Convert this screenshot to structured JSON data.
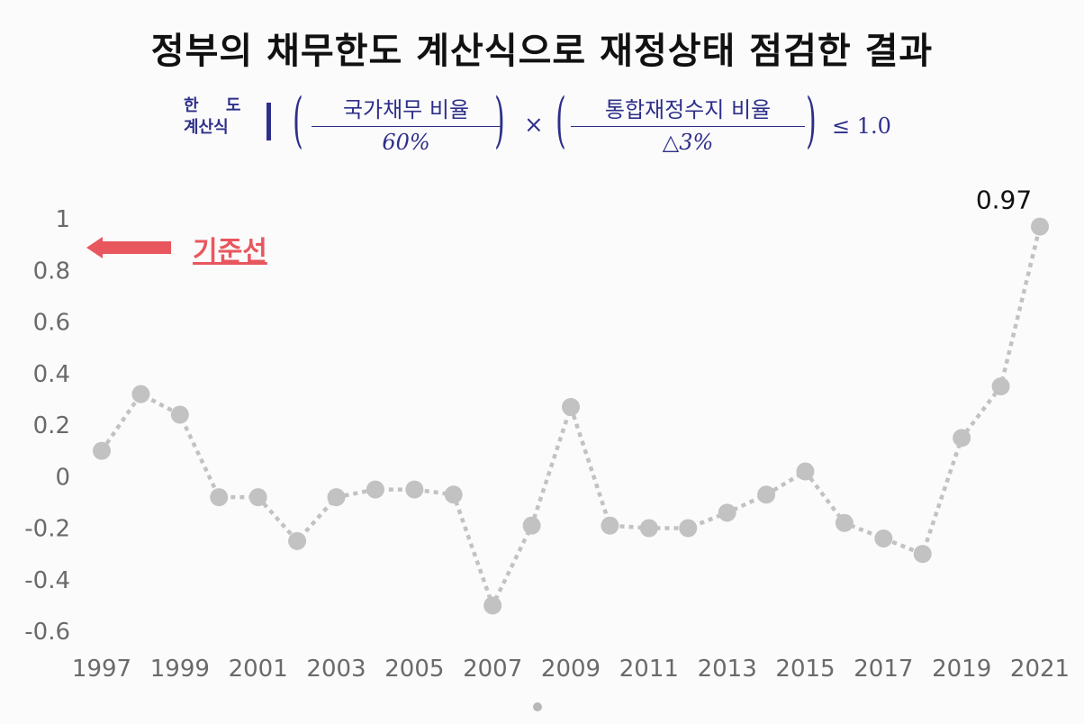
{
  "title": "정부의 채무한도 계산식으로 재정상태 점검한 결과",
  "formula": {
    "label_line1": "한 도",
    "label_line2": "계산식",
    "numerator1": "국가채무 비율",
    "denominator1": "60%",
    "operator": "×",
    "numerator2": "통합재정수지 비율",
    "denominator2": "△3%",
    "condition": "≤ 1.0",
    "color": "#2e2f8a"
  },
  "reference": {
    "label": "기준선",
    "color": "#e8575e"
  },
  "chart_data": {
    "type": "line",
    "title": "",
    "xlabel": "",
    "ylabel": "",
    "x": [
      1997,
      1998,
      1999,
      2000,
      2001,
      2002,
      2003,
      2004,
      2005,
      2006,
      2007,
      2008,
      2009,
      2010,
      2011,
      2012,
      2013,
      2014,
      2015,
      2016,
      2017,
      2018,
      2019,
      2020,
      2021
    ],
    "x_tick_labels": [
      "1997",
      "1999",
      "2001",
      "2003",
      "2005",
      "2007",
      "2009",
      "2011",
      "2013",
      "2015",
      "2017",
      "2019",
      "2021"
    ],
    "series": [
      {
        "values": [
          0.1,
          0.32,
          0.24,
          -0.08,
          -0.08,
          -0.25,
          -0.08,
          -0.05,
          -0.05,
          -0.07,
          -0.5,
          -0.19,
          0.27,
          -0.19,
          -0.2,
          -0.2,
          -0.14,
          -0.07,
          0.02,
          -0.18,
          -0.24,
          -0.3,
          0.15,
          0.35,
          0.97
        ],
        "color": "#c2c2c2",
        "line_style": "dotted",
        "marker": "circle"
      }
    ],
    "y_tick_labels": [
      "1",
      "0.8",
      "0.6",
      "0.4",
      "0.2",
      "0",
      "-0.2",
      "-0.4",
      "-0.6"
    ],
    "ylim": [
      -0.6,
      1
    ],
    "annotations": [
      {
        "x": 2021,
        "text": "0.97"
      }
    ],
    "grid": false,
    "legend": "none"
  }
}
